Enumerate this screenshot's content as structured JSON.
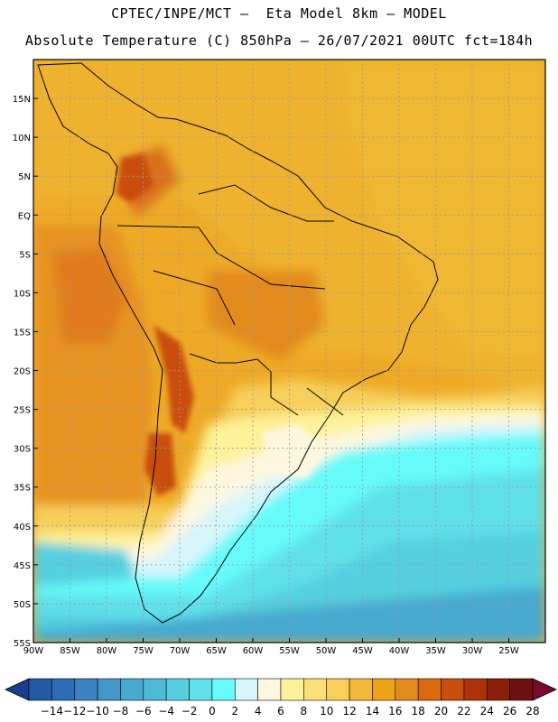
{
  "header": {
    "line1": "CPTEC/INPE/MCT –  Eta Model 8km – MODEL",
    "line2": "Absolute Temperature (C) 850hPa – 26/07/2021 00UTC fct=184h"
  },
  "map": {
    "lon_range": [
      -90,
      -20
    ],
    "lat_range": [
      -55,
      20
    ],
    "lon_ticks": [
      "90W",
      "85W",
      "80W",
      "75W",
      "70W",
      "65W",
      "60W",
      "55W",
      "50W",
      "45W",
      "40W",
      "35W",
      "30W",
      "25W"
    ],
    "lat_ticks": [
      "15N",
      "10N",
      "5N",
      "EQ",
      "5S",
      "10S",
      "15S",
      "20S",
      "25S",
      "30S",
      "35S",
      "40S",
      "45S",
      "50S",
      "55S"
    ]
  },
  "colorbar": {
    "labels": [
      "-14",
      "-12",
      "-10",
      "-8",
      "-6",
      "-4",
      "-2",
      "0",
      "2",
      "4",
      "6",
      "8",
      "10",
      "12",
      "14",
      "16",
      "18",
      "20",
      "22",
      "24",
      "26",
      "28"
    ],
    "colors": [
      "#1a3d8c",
      "#2259a3",
      "#2e6db5",
      "#3a82c0",
      "#4297c7",
      "#47a9cf",
      "#4dbbd6",
      "#55cfe0",
      "#5fe0ea",
      "#66fafa",
      "#d6f6fb",
      "#fdf7e0",
      "#fdf29a",
      "#fbe07a",
      "#f7cf5a",
      "#f2b93a",
      "#eca414",
      "#e38a1e",
      "#d96a10",
      "#c94e0e",
      "#ad3208",
      "#8a1e08",
      "#6e1010",
      "#7a0a2a"
    ]
  }
}
